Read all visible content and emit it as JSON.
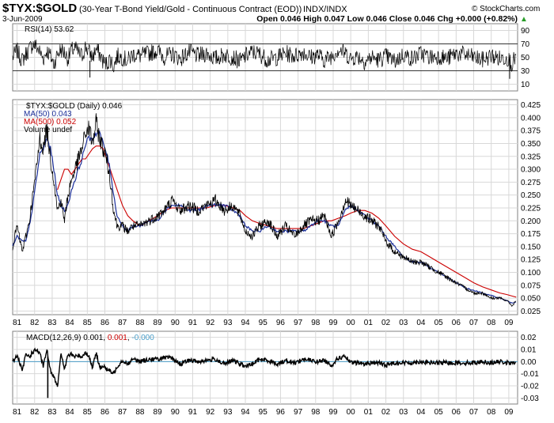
{
  "header": {
    "symbol": "$TYX:$GOLD",
    "description": "(30-Year T-Bond Yield/Gold - Continuous Contract (EOD))",
    "exchange": "INDX/INDX",
    "date": "3-Jun-2009",
    "watermark": "© StockCharts.com",
    "ohlc": "Open 0.046  High 0.047  Low 0.046  Close 0.046  Chg +0.000 (+0.82%)",
    "up_arrow": "▲"
  },
  "colors": {
    "price": "#000000",
    "ma50": "#1b2f99",
    "ma500": "#cc0000",
    "grid": "#d8d8d8",
    "macd": "#000000",
    "signal": "#cc0000",
    "hist": "#4a9ec9",
    "border": "#808080",
    "up": "#2a9d2a"
  },
  "rsi_panel": {
    "legend": "RSI(14) 53.62",
    "y_ticks": [
      "90",
      "70",
      "50",
      "30",
      "10"
    ],
    "overbought": 70,
    "oversold": 30,
    "ylim": [
      0,
      100
    ]
  },
  "price_panel": {
    "legend_price": "$TYX:$GOLD (Daily) 0.046",
    "legend_ma50": "MA(50) 0.043",
    "legend_ma500": "MA(500) 0.052",
    "legend_volume": "Volume undef",
    "y_ticks": [
      "0.425",
      "0.400",
      "0.375",
      "0.350",
      "0.325",
      "0.300",
      "0.275",
      "0.250",
      "0.225",
      "0.200",
      "0.175",
      "0.150",
      "0.125",
      "0.100",
      "0.075",
      "0.050",
      "0.025"
    ],
    "ylim": [
      0.018,
      0.435
    ]
  },
  "macd_panel": {
    "legend_prefix": "MACD(12,26,9) 0.001, ",
    "legend_signal": "0.001",
    "legend_sep": ", ",
    "legend_hist": "-0.000",
    "y_ticks": [
      "0.02",
      "0.01",
      "0.00",
      "-0.01",
      "-0.02",
      "-0.03"
    ],
    "ylim": [
      -0.035,
      0.025
    ]
  },
  "x_ticks": [
    "81",
    "82",
    "83",
    "84",
    "85",
    "86",
    "87",
    "88",
    "89",
    "90",
    "91",
    "92",
    "93",
    "94",
    "95",
    "96",
    "97",
    "98",
    "99",
    "00",
    "01",
    "02",
    "03",
    "04",
    "05",
    "06",
    "07",
    "08",
    "09"
  ],
  "chart_data": {
    "type": "line",
    "title": "$TYX:$GOLD",
    "x_range": [
      1980.75,
      2009.5
    ],
    "x": [
      1980.75,
      1981.0,
      1981.3,
      1981.5,
      1981.7,
      1981.9,
      1982.1,
      1982.3,
      1982.5,
      1982.7,
      1982.9,
      1983.1,
      1983.3,
      1983.5,
      1983.7,
      1983.9,
      1984.1,
      1984.3,
      1984.5,
      1984.7,
      1984.9,
      1985.1,
      1985.3,
      1985.5,
      1985.7,
      1985.9,
      1986.1,
      1986.3,
      1986.5,
      1986.7,
      1987.0,
      1987.3,
      1987.6,
      1988.0,
      1988.5,
      1989.0,
      1989.4,
      1989.8,
      1990.3,
      1990.8,
      1991.3,
      1991.8,
      1992.3,
      1992.8,
      1993.3,
      1993.7,
      1994.0,
      1994.4,
      1994.8,
      1995.3,
      1995.8,
      1996.3,
      1996.8,
      1997.3,
      1997.7,
      1998.1,
      1998.5,
      1998.9,
      1999.3,
      1999.7,
      2000.0,
      2000.4,
      2000.8,
      2001.2,
      2001.6,
      2002.0,
      2002.5,
      2003.0,
      2003.5,
      2004.0,
      2004.5,
      2005.0,
      2005.5,
      2006.0,
      2006.5,
      2007.0,
      2007.5,
      2008.0,
      2008.5,
      2008.9,
      2009.2,
      2009.42
    ],
    "series": [
      {
        "name": "$TYX:$GOLD (Daily)",
        "values": [
          0.15,
          0.19,
          0.14,
          0.17,
          0.2,
          0.25,
          0.3,
          0.36,
          0.34,
          0.38,
          0.32,
          0.28,
          0.22,
          0.24,
          0.2,
          0.25,
          0.28,
          0.3,
          0.32,
          0.34,
          0.37,
          0.38,
          0.35,
          0.39,
          0.36,
          0.34,
          0.32,
          0.28,
          0.22,
          0.19,
          0.19,
          0.18,
          0.19,
          0.19,
          0.2,
          0.21,
          0.22,
          0.24,
          0.22,
          0.23,
          0.22,
          0.23,
          0.24,
          0.22,
          0.23,
          0.21,
          0.18,
          0.17,
          0.19,
          0.2,
          0.17,
          0.19,
          0.17,
          0.19,
          0.2,
          0.2,
          0.21,
          0.17,
          0.2,
          0.24,
          0.23,
          0.22,
          0.21,
          0.2,
          0.19,
          0.16,
          0.14,
          0.13,
          0.12,
          0.12,
          0.11,
          0.1,
          0.09,
          0.08,
          0.07,
          0.06,
          0.06,
          0.05,
          0.05,
          0.045,
          0.035,
          0.046
        ]
      },
      {
        "name": "MA(50)",
        "values": [
          0.15,
          0.17,
          0.16,
          0.16,
          0.19,
          0.23,
          0.28,
          0.33,
          0.34,
          0.36,
          0.34,
          0.3,
          0.25,
          0.23,
          0.22,
          0.23,
          0.26,
          0.28,
          0.3,
          0.32,
          0.35,
          0.36,
          0.36,
          0.37,
          0.37,
          0.35,
          0.33,
          0.3,
          0.25,
          0.21,
          0.19,
          0.18,
          0.19,
          0.19,
          0.2,
          0.2,
          0.22,
          0.23,
          0.23,
          0.22,
          0.22,
          0.23,
          0.23,
          0.23,
          0.22,
          0.21,
          0.19,
          0.18,
          0.18,
          0.19,
          0.18,
          0.18,
          0.18,
          0.18,
          0.19,
          0.2,
          0.2,
          0.19,
          0.19,
          0.22,
          0.23,
          0.22,
          0.21,
          0.2,
          0.19,
          0.17,
          0.15,
          0.13,
          0.12,
          0.12,
          0.11,
          0.1,
          0.09,
          0.08,
          0.07,
          0.065,
          0.06,
          0.055,
          0.05,
          0.045,
          0.04,
          0.043
        ]
      },
      {
        "name": "MA(500)",
        "values": [
          null,
          null,
          null,
          null,
          null,
          null,
          null,
          null,
          null,
          null,
          null,
          null,
          0.26,
          0.28,
          0.3,
          0.3,
          0.29,
          0.3,
          0.31,
          0.32,
          0.32,
          0.33,
          0.34,
          0.345,
          0.345,
          0.34,
          0.32,
          0.3,
          0.28,
          0.26,
          0.23,
          0.21,
          0.2,
          0.19,
          0.2,
          0.21,
          0.22,
          0.225,
          0.225,
          0.225,
          0.225,
          0.225,
          0.23,
          0.23,
          0.225,
          0.22,
          0.21,
          0.2,
          0.195,
          0.19,
          0.185,
          0.185,
          0.185,
          0.185,
          0.19,
          0.195,
          0.2,
          0.2,
          0.205,
          0.21,
          0.215,
          0.22,
          0.22,
          0.215,
          0.205,
          0.19,
          0.17,
          0.155,
          0.145,
          0.14,
          0.13,
          0.12,
          0.11,
          0.1,
          0.09,
          0.08,
          0.072,
          0.066,
          0.06,
          0.057,
          0.054,
          0.052
        ]
      },
      {
        "name": "RSI(14)",
        "values": [
          50,
          60,
          45,
          55,
          62,
          70,
          66,
          58,
          48,
          60,
          52,
          40,
          55,
          62,
          57,
          48,
          60,
          64,
          56,
          52,
          66,
          58,
          50,
          62,
          55,
          44,
          40,
          48,
          36,
          52,
          50,
          45,
          55,
          52,
          56,
          60,
          50,
          55,
          48,
          58,
          52,
          56,
          48,
          54,
          50,
          44,
          52,
          58,
          55,
          46,
          50,
          56,
          52,
          58,
          50,
          54,
          46,
          52,
          62,
          56,
          48,
          52,
          44,
          50,
          46,
          52,
          44,
          54,
          48,
          56,
          50,
          52,
          48,
          56,
          54,
          50,
          46,
          52,
          48,
          50,
          40,
          54
        ]
      },
      {
        "name": "MACD(12,26,9)",
        "values": [
          0,
          0.005,
          -0.008,
          0.006,
          0.004,
          0.008,
          0.01,
          0.006,
          -0.004,
          0.01,
          -0.008,
          -0.012,
          -0.02,
          0.006,
          -0.006,
          0.005,
          0.006,
          0.004,
          0.005,
          0.004,
          0.008,
          0.004,
          -0.005,
          0.007,
          -0.004,
          -0.004,
          -0.006,
          -0.008,
          -0.01,
          -0.004,
          0.001,
          -0.002,
          0.002,
          0,
          0.002,
          0.002,
          0.003,
          0.003,
          -0.002,
          0.001,
          0,
          0.001,
          0.002,
          -0.002,
          0.001,
          -0.002,
          -0.004,
          -0.002,
          0.002,
          0.001,
          -0.002,
          0.001,
          -0.001,
          0.002,
          0.001,
          0,
          0.001,
          -0.003,
          0.003,
          0.004,
          -0.001,
          -0.001,
          -0.002,
          -0.001,
          -0.001,
          -0.003,
          -0.001,
          -0.001,
          -0.001,
          0,
          -0.001,
          -0.001,
          -0.001,
          -0.001,
          -0.001,
          -0.001,
          0,
          -0.001,
          0,
          -0.001,
          -0.002,
          0.001
        ]
      }
    ],
    "spikes": {
      "macd_low": {
        "x": 1982.75,
        "value": -0.03
      },
      "rsi_lows": [
        {
          "x": 1985.15,
          "value": 20
        },
        {
          "x": 2009.05,
          "value": 18
        }
      ]
    }
  }
}
